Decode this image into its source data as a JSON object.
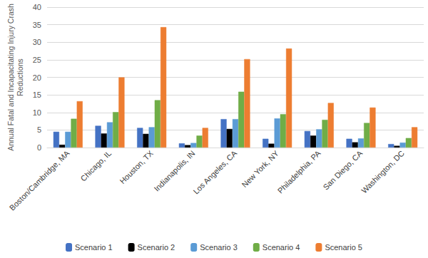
{
  "chart_data": {
    "type": "bar",
    "y_label": "Annual Fatal and Incapacitating Injury Crash\nReductions",
    "categories": [
      "Boston/Cambridge, MA",
      "Chicago, IL",
      "Houston, TX",
      "Indianapolis, IN",
      "Los Angeles, CA",
      "New York, NY",
      "Philadelphia, PA",
      "San Diego, CA",
      "Washington, DC"
    ],
    "series": [
      {
        "name": "Scenario 1",
        "color": "#4472c4",
        "values": [
          4.5,
          6.2,
          5.6,
          1.2,
          8.1,
          2.5,
          4.7,
          2.5,
          1.0
        ]
      },
      {
        "name": "Scenario 2",
        "color": "#000000",
        "values": [
          0.8,
          4.0,
          3.9,
          0.7,
          5.3,
          1.1,
          3.4,
          1.5,
          0.5
        ]
      },
      {
        "name": "Scenario 3",
        "color": "#5b9bd5",
        "values": [
          4.5,
          7.2,
          5.8,
          1.3,
          8.1,
          8.3,
          5.2,
          2.6,
          1.4
        ]
      },
      {
        "name": "Scenario 4",
        "color": "#70ad47",
        "values": [
          8.2,
          10.1,
          13.5,
          3.4,
          15.9,
          9.5,
          7.9,
          7.0,
          2.7
        ]
      },
      {
        "name": "Scenario 5",
        "color": "#ed7d31",
        "values": [
          13.2,
          20.0,
          34.3,
          5.6,
          25.2,
          28.2,
          12.7,
          11.4,
          5.8
        ]
      }
    ],
    "ylim": [
      0,
      40
    ],
    "yticks": [
      0,
      5,
      10,
      15,
      20,
      25,
      30,
      35,
      40
    ],
    "grid": true,
    "legend": "bottom"
  }
}
